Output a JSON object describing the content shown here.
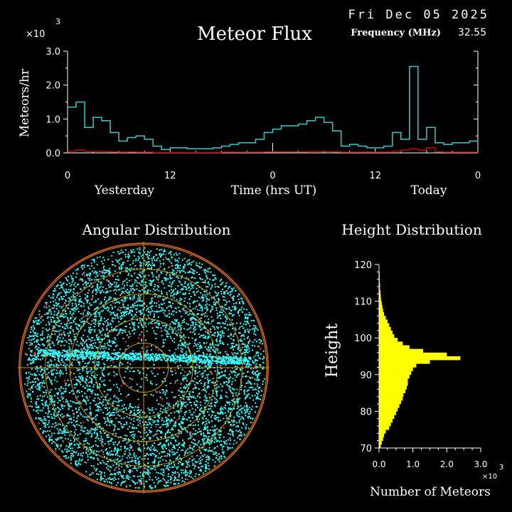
{
  "header": {
    "date": "Fri Dec 05 2025",
    "frequency_label": "Frequency (MHz)",
    "frequency_value": "32.55"
  },
  "colors": {
    "background": "#000000",
    "flux_series": "#33cccc",
    "flux_secondary": "#cc0000",
    "scatter_primary": "#33ffff",
    "scatter_secondary": "#ff3333",
    "rings": "#cc9900",
    "height_bars": "#ffff00"
  },
  "chart_data": [
    {
      "type": "line",
      "title": "Meteor Flux",
      "xlabel": "Time (hrs UT)",
      "ylabel": "Meteors/hr",
      "y_multiplier": "×10",
      "y_multiplier_exp": "3",
      "ylim": [
        0,
        3.0
      ],
      "xlim": [
        0,
        48
      ],
      "x_ticks": [
        0,
        12,
        24,
        36,
        48
      ],
      "x_tick_labels": [
        "0",
        "12",
        "0",
        "12",
        "0"
      ],
      "y_ticks": [
        0,
        1,
        2,
        3
      ],
      "y_tick_labels": [
        "0.0",
        "1.0",
        "2.0",
        "3.0"
      ],
      "day_labels": [
        "Yesterday",
        "Today"
      ],
      "x": [
        0,
        1,
        2,
        3,
        4,
        5,
        6,
        7,
        8,
        9,
        10,
        11,
        12,
        13,
        14,
        15,
        16,
        17,
        18,
        19,
        20,
        21,
        22,
        23,
        24,
        25,
        26,
        27,
        28,
        29,
        30,
        31,
        32,
        33,
        34,
        35,
        36,
        37,
        38,
        39,
        40,
        41,
        42,
        43,
        44,
        45,
        46,
        47
      ],
      "series": [
        {
          "values": [
            1.35,
            1.5,
            0.75,
            1.05,
            0.95,
            0.6,
            0.35,
            0.45,
            0.5,
            0.4,
            0.2,
            0.1,
            0.15,
            0.15,
            0.12,
            0.12,
            0.12,
            0.15,
            0.2,
            0.25,
            0.3,
            0.3,
            0.4,
            0.6,
            0.7,
            0.8,
            0.8,
            0.85,
            0.95,
            1.05,
            0.9,
            0.65,
            0.2,
            0.25,
            0.2,
            0.15,
            0.15,
            0.2,
            0.6,
            0.4,
            2.55,
            0.4,
            0.75,
            0.3,
            0.25,
            0.3,
            0.3,
            0.35
          ],
          "style": "step"
        },
        {
          "values": [
            0.05,
            0.08,
            0.04,
            0.05,
            0.04,
            0.03,
            0.02,
            0.03,
            0.02,
            0.02,
            0.01,
            0.01,
            0.01,
            0.01,
            0.01,
            0.01,
            0.01,
            0.01,
            0.02,
            0.02,
            0.02,
            0.02,
            0.02,
            0.03,
            0.03,
            0.03,
            0.03,
            0.03,
            0.04,
            0.04,
            0.04,
            0.03,
            0.02,
            0.02,
            0.02,
            0.02,
            0.02,
            0.02,
            0.05,
            0.08,
            0.12,
            0.08,
            0.15,
            0.03,
            0.02,
            0.02,
            0.02,
            0.02
          ],
          "style": "step"
        }
      ]
    },
    {
      "type": "scatter",
      "title": "Angular Distribution",
      "projection": "polar",
      "rings": 5,
      "note_density": "dense cyan points filling disk with a bright horizontal band slightly above center; sparse red points"
    },
    {
      "type": "bar",
      "orientation": "horizontal",
      "title": "Height Distribution",
      "xlabel": "Number of Meteors",
      "ylabel": "Height",
      "x_multiplier": "×10",
      "x_multiplier_exp": "3",
      "xlim": [
        0,
        3.0
      ],
      "ylim": [
        70,
        120
      ],
      "x_ticks": [
        0,
        1,
        2,
        3
      ],
      "x_tick_labels": [
        "0.0",
        "1.0",
        "2.0",
        "3.0"
      ],
      "y_ticks": [
        70,
        80,
        90,
        100,
        110,
        120
      ],
      "y_tick_labels": [
        "70",
        "80",
        "90",
        "100",
        "110",
        "120"
      ],
      "categories": [
        70,
        71,
        72,
        73,
        74,
        75,
        76,
        77,
        78,
        79,
        80,
        81,
        82,
        83,
        84,
        85,
        86,
        87,
        88,
        89,
        90,
        91,
        92,
        93,
        94,
        95,
        96,
        97,
        98,
        99,
        100,
        101,
        102,
        103,
        104,
        105,
        106,
        107,
        108,
        109,
        110,
        111,
        112,
        113,
        114,
        115,
        116,
        117,
        118,
        119
      ],
      "values": [
        0.05,
        0.08,
        0.12,
        0.15,
        0.2,
        0.3,
        0.35,
        0.4,
        0.45,
        0.5,
        0.55,
        0.6,
        0.65,
        0.7,
        0.72,
        0.78,
        0.82,
        0.85,
        0.85,
        0.9,
        0.95,
        1.0,
        1.1,
        1.5,
        2.4,
        2.0,
        1.3,
        0.9,
        0.7,
        0.55,
        0.45,
        0.4,
        0.35,
        0.3,
        0.25,
        0.2,
        0.15,
        0.12,
        0.1,
        0.08,
        0.06,
        0.05,
        0.04,
        0.03,
        0.03,
        0.02,
        0.02,
        0.02,
        0.01,
        0.01
      ]
    }
  ]
}
